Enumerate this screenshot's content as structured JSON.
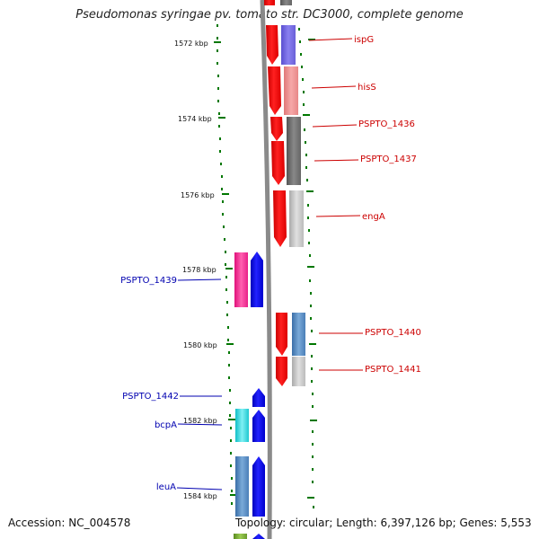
{
  "title": "Pseudomonas syringae pv. tomato str. DC3000, complete genome",
  "accession": "Accession: NC_004578",
  "topology": "Topology: circular; Length: 6,397,126 bp; Genes: 5,553",
  "colors": {
    "forward_label": "#cc0000",
    "reverse_label": "#0000b0",
    "tick": "#007700",
    "backbone": "#888888"
  },
  "kbp_ticks": [
    "1572 kbp",
    "1574 kbp",
    "1576 kbp",
    "1578 kbp",
    "1580 kbp",
    "1582 kbp",
    "1584 kbp"
  ],
  "genes_forward": [
    "ispG",
    "hisS",
    "PSPTO_1436",
    "PSPTO_1437",
    "engA",
    "PSPTO_1440",
    "PSPTO_1441"
  ],
  "genes_reverse": [
    "PSPTO_1439",
    "PSPTO_1442",
    "bcpA",
    "leuA"
  ]
}
